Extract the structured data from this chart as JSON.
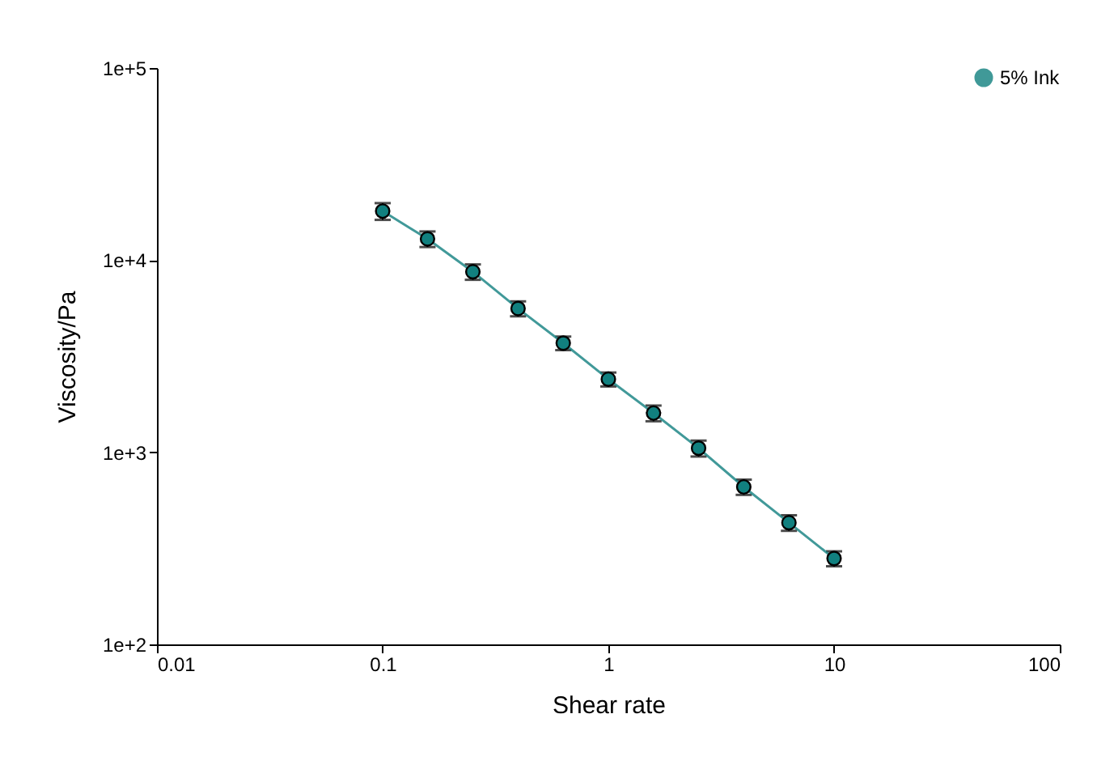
{
  "chart_data": {
    "type": "line",
    "xlabel": "Shear rate",
    "ylabel": "Viscosity/Pa",
    "x": [
      0.1,
      0.158,
      0.251,
      0.398,
      0.631,
      1,
      1.585,
      2.51,
      3.98,
      6.31,
      10
    ],
    "series": [
      {
        "name": "5% Ink",
        "color": "#11807f",
        "values": [
          18000,
          12900,
          8700,
          5600,
          3700,
          2400,
          1600,
          1050,
          660,
          430,
          280
        ],
        "errors": [
          1800,
          1200,
          800,
          500,
          300,
          200,
          150,
          100,
          60,
          40,
          25
        ]
      }
    ],
    "log": "xy",
    "xlim": [
      0.01,
      100
    ],
    "ylim": [
      100,
      100000
    ],
    "xticks": [
      0.01,
      0.1,
      1,
      10,
      100
    ],
    "yticks": [
      {
        "value": 100,
        "label": "1e+2"
      },
      {
        "value": 1000,
        "label": "1e+3"
      },
      {
        "value": 10000,
        "label": "1e+4"
      },
      {
        "value": 100000,
        "label": "1e+5"
      }
    ],
    "grid": false,
    "legend": "top right",
    "marker": "circle",
    "line_style": "solid"
  }
}
